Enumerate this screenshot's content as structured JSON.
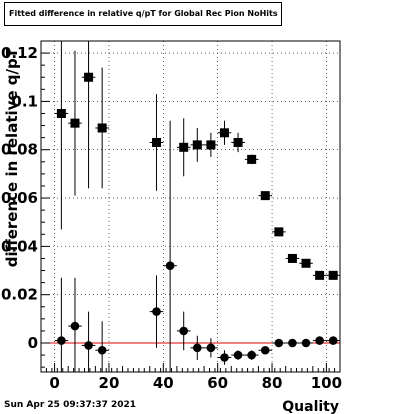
{
  "title": "Fitted difference in relative q/pT for Global Rec Pion NoHits",
  "timestamp": "Sun Apr 25 09:37:37 2021",
  "chart_data": {
    "type": "scatter",
    "xlabel": "Quality",
    "ylabel": "difference in relative q/pT",
    "xlim": [
      -5,
      105
    ],
    "ylim": [
      -0.012,
      0.125
    ],
    "xticks": [
      0,
      20,
      40,
      60,
      80,
      100
    ],
    "yticks": [
      0,
      0.02,
      0.04,
      0.06,
      0.08,
      0.1,
      0.12
    ],
    "xtick_labels": [
      "0",
      "20",
      "40",
      "60",
      "80",
      "100"
    ],
    "ytick_labels": [
      "0",
      "0.02",
      "0.04",
      "0.06",
      "0.08",
      "0.1",
      "0.12"
    ],
    "grid": true,
    "reference_line": {
      "y": 0,
      "color": "#e00000"
    },
    "series": [
      {
        "marker": "square",
        "points": [
          {
            "x": 2.5,
            "y": 0.095,
            "err": 0.048
          },
          {
            "x": 7.5,
            "y": 0.091,
            "err": 0.03
          },
          {
            "x": 12.5,
            "y": 0.11,
            "err": 0.046
          },
          {
            "x": 17.5,
            "y": 0.089,
            "err": 0.025
          },
          {
            "x": 37.5,
            "y": 0.083,
            "err": 0.02
          },
          {
            "x": 47.5,
            "y": 0.081,
            "err": 0.012
          },
          {
            "x": 52.5,
            "y": 0.082,
            "err": 0.007
          },
          {
            "x": 57.5,
            "y": 0.082,
            "err": 0.005
          },
          {
            "x": 62.5,
            "y": 0.087,
            "err": 0.005
          },
          {
            "x": 67.5,
            "y": 0.083,
            "err": 0.004
          },
          {
            "x": 72.5,
            "y": 0.076,
            "err": 0.002
          },
          {
            "x": 77.5,
            "y": 0.061,
            "err": 0.001
          },
          {
            "x": 82.5,
            "y": 0.046,
            "err": 0.001
          },
          {
            "x": 87.5,
            "y": 0.035,
            "err": 0.001
          },
          {
            "x": 92.5,
            "y": 0.033,
            "err": 0.001
          },
          {
            "x": 97.5,
            "y": 0.028,
            "err": 0.001
          },
          {
            "x": 102.5,
            "y": 0.028,
            "err": 0.001
          }
        ]
      },
      {
        "marker": "circle",
        "points": [
          {
            "x": 2.5,
            "y": 0.001,
            "err": 0.026
          },
          {
            "x": 7.5,
            "y": 0.007,
            "err": 0.02
          },
          {
            "x": 12.5,
            "y": -0.001,
            "err": 0.014
          },
          {
            "x": 17.5,
            "y": -0.003,
            "err": 0.012
          },
          {
            "x": 37.5,
            "y": 0.013,
            "err": 0.015
          },
          {
            "x": 42.5,
            "y": 0.032,
            "err": 0.06
          },
          {
            "x": 47.5,
            "y": 0.005,
            "err": 0.008
          },
          {
            "x": 52.5,
            "y": -0.002,
            "err": 0.005
          },
          {
            "x": 57.5,
            "y": -0.002,
            "err": 0.004
          },
          {
            "x": 62.5,
            "y": -0.006,
            "err": 0.003
          },
          {
            "x": 67.5,
            "y": -0.005,
            "err": 0.002
          },
          {
            "x": 72.5,
            "y": -0.005,
            "err": 0.002
          },
          {
            "x": 77.5,
            "y": -0.003,
            "err": 0.001
          },
          {
            "x": 82.5,
            "y": 0.0,
            "err": 0.001
          },
          {
            "x": 87.5,
            "y": 0.0,
            "err": 0.001
          },
          {
            "x": 92.5,
            "y": 0.0,
            "err": 0.001
          },
          {
            "x": 97.5,
            "y": 0.001,
            "err": 0.001
          },
          {
            "x": 102.5,
            "y": 0.001,
            "err": 0.001
          }
        ]
      }
    ]
  }
}
